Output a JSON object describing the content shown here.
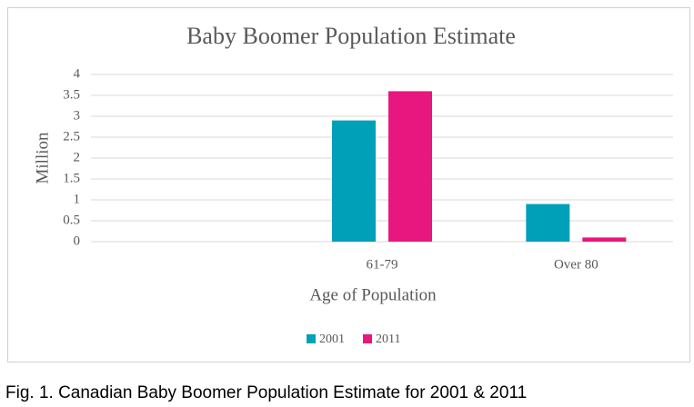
{
  "chart_data": {
    "type": "bar",
    "title": "Baby Boomer Population Estimate",
    "x_label": "Age of Population",
    "y_label": "Million",
    "categories": [
      null,
      "61-79",
      "Over 80"
    ],
    "series": [
      {
        "name": "2001",
        "color": "#00a0b8",
        "values": [
          null,
          2.9,
          0.9
        ]
      },
      {
        "name": "2011",
        "color": "#e8177f",
        "values": [
          null,
          3.6,
          0.1
        ]
      }
    ],
    "ylim": [
      0,
      4
    ],
    "yticks": [
      0,
      0.5,
      1,
      1.5,
      2,
      2.5,
      3,
      3.5,
      4
    ],
    "grid": true,
    "legend": "bottom"
  },
  "caption": "Fig. 1. Canadian Baby Boomer Population Estimate for 2001 & 2011"
}
